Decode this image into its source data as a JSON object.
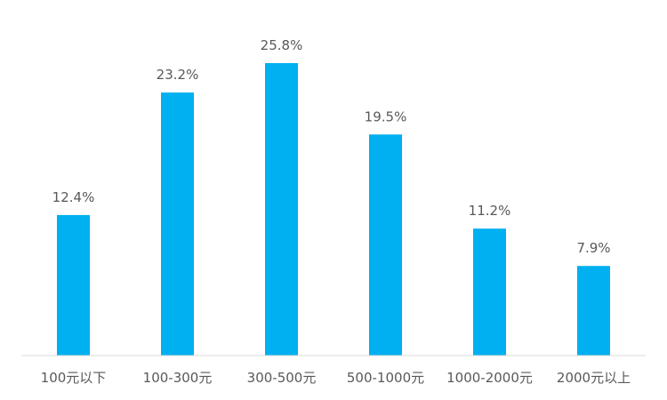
{
  "chart_data": {
    "type": "bar",
    "title": "",
    "xlabel": "",
    "ylabel": "",
    "categories": [
      "100元以下",
      "100-300元",
      "300-500元",
      "500-1000元",
      "1000-2000元",
      "2000元以上"
    ],
    "values": [
      12.4,
      23.2,
      25.8,
      19.5,
      11.2,
      7.9
    ],
    "data_labels": [
      "12.4%",
      "23.2%",
      "25.8%",
      "19.5%",
      "11.2%",
      "7.9%"
    ],
    "ylim": [
      0,
      27.6
    ],
    "grid": false,
    "legend": "none",
    "bar_color": "#00B0F0",
    "axis_color": "#D9D9D9",
    "text_color": "#595959"
  }
}
